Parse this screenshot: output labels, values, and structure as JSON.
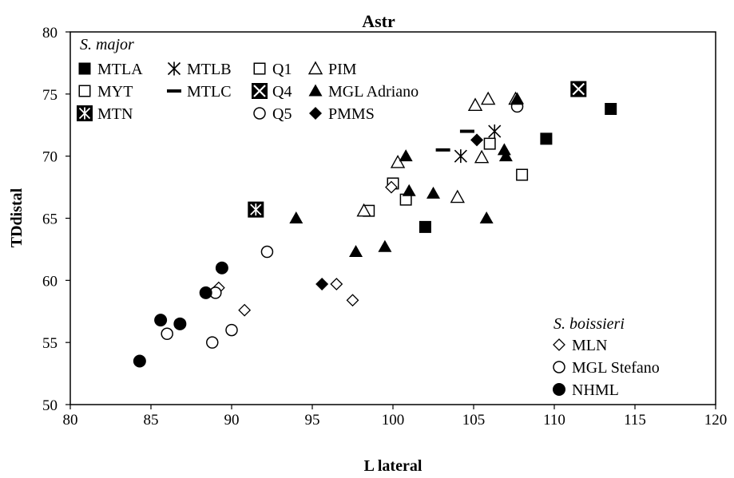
{
  "chart_data": {
    "type": "scatter",
    "title": "Astr",
    "xlabel": "L lateral",
    "ylabel": "TDdistal",
    "xlim": [
      80,
      120
    ],
    "ylim": [
      50,
      80
    ],
    "xticks": [
      "80",
      "85",
      "90",
      "95",
      "100",
      "105",
      "110",
      "115",
      "120"
    ],
    "yticks": [
      "50",
      "55",
      "60",
      "65",
      "70",
      "75",
      "80"
    ],
    "grid": false,
    "legend_groups": [
      {
        "title": "S. major",
        "placement": "top-left"
      },
      {
        "title": "S. boissieri",
        "placement": "bottom-right"
      }
    ],
    "series": [
      {
        "name": "MTLA",
        "group": "S. major",
        "marker": "filled-square",
        "points": [
          [
            102,
            64.3
          ],
          [
            109.5,
            71.4
          ],
          [
            113.5,
            73.8
          ]
        ]
      },
      {
        "name": "MTLB",
        "group": "S. major",
        "marker": "asterisk",
        "points": [
          [
            104.2,
            70
          ],
          [
            106.3,
            72
          ]
        ]
      },
      {
        "name": "MTLC",
        "group": "S. major",
        "marker": "dash",
        "points": [
          [
            103.1,
            70.5
          ],
          [
            104.6,
            72
          ]
        ]
      },
      {
        "name": "MYT",
        "group": "S. major",
        "marker": "open-square",
        "points": [
          [
            100,
            67.8
          ],
          [
            100.8,
            66.5
          ],
          [
            106,
            71
          ],
          [
            108,
            68.5
          ]
        ]
      },
      {
        "name": "MTN",
        "group": "S. major",
        "marker": "asterisk-square",
        "points": [
          [
            91.5,
            65.7
          ]
        ]
      },
      {
        "name": "Q1",
        "group": "S. major",
        "marker": "open-square",
        "points": [
          [
            98.5,
            65.6
          ]
        ]
      },
      {
        "name": "Q4",
        "group": "S. major",
        "marker": "crossed-square",
        "points": [
          [
            111.5,
            75.4
          ]
        ]
      },
      {
        "name": "Q5",
        "group": "S. major",
        "marker": "open-circle",
        "points": [
          [
            107.7,
            74
          ]
        ]
      },
      {
        "name": "PIM",
        "group": "S. major",
        "marker": "open-triangle",
        "points": [
          [
            98.2,
            65.6
          ],
          [
            100.3,
            69.5
          ],
          [
            104,
            66.7
          ],
          [
            105.1,
            74.1
          ],
          [
            105.5,
            69.9
          ],
          [
            105.9,
            74.6
          ],
          [
            107.6,
            74.6
          ]
        ]
      },
      {
        "name": "MGL Adriano",
        "group": "S. major",
        "marker": "filled-triangle",
        "points": [
          [
            94,
            65
          ],
          [
            97.7,
            62.3
          ],
          [
            99.5,
            62.7
          ],
          [
            100.8,
            70
          ],
          [
            101,
            67.2
          ],
          [
            102.5,
            67
          ],
          [
            105.8,
            65
          ],
          [
            106.9,
            70.5
          ],
          [
            107,
            70
          ],
          [
            107.7,
            74.6
          ]
        ]
      },
      {
        "name": "PMMS",
        "group": "S. major",
        "marker": "filled-diamond",
        "points": [
          [
            95.6,
            59.7
          ],
          [
            105.2,
            71.3
          ]
        ]
      },
      {
        "name": "MLN",
        "group": "S. boissieri",
        "marker": "open-diamond",
        "points": [
          [
            89.2,
            59.4
          ],
          [
            90.8,
            57.6
          ],
          [
            96.5,
            59.7
          ],
          [
            97.5,
            58.4
          ],
          [
            99.9,
            67.5
          ]
        ]
      },
      {
        "name": "MGL Stefano",
        "group": "S. boissieri",
        "marker": "open-circle",
        "points": [
          [
            86,
            55.7
          ],
          [
            88.8,
            55
          ],
          [
            89,
            59
          ],
          [
            90,
            56
          ],
          [
            92.2,
            62.3
          ]
        ]
      },
      {
        "name": "NHML",
        "group": "S. boissieri",
        "marker": "filled-circle",
        "points": [
          [
            84.3,
            53.5
          ],
          [
            85.6,
            56.8
          ],
          [
            86.8,
            56.5
          ],
          [
            88.4,
            59
          ],
          [
            89.4,
            61
          ]
        ]
      }
    ]
  }
}
